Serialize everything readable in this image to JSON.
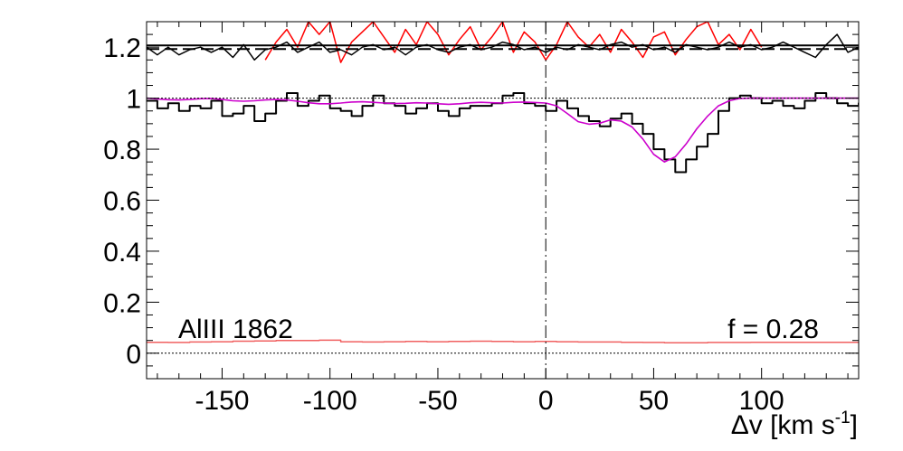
{
  "chart_data": {
    "type": "line",
    "title": "",
    "xlabel": {
      "main": "Δv [km s",
      "sup": "-1",
      "close": "]"
    },
    "ylabel": "",
    "xlim": [
      -185,
      145
    ],
    "ylim": [
      -0.1,
      1.3
    ],
    "x_ticks": [
      -150,
      -100,
      -50,
      0,
      50,
      100
    ],
    "x_tick_labels": [
      "-150",
      "-100",
      "-50",
      "0",
      "50",
      "100"
    ],
    "y_ticks": [
      0,
      0.2,
      0.4,
      0.6,
      0.8,
      1,
      1.2
    ],
    "y_tick_labels": [
      "0",
      "0.2",
      "0.4",
      "0.6",
      "0.8",
      "1",
      "1.2"
    ],
    "grid": false,
    "annotations": {
      "line_label": "AlIII 1862",
      "f_label": "f = 0.28"
    },
    "reference_lines": {
      "continuum": 1.0,
      "zero": 0.0,
      "residual_zero": 1.2,
      "velocity_zero": 0
    },
    "colors": {
      "flux": "#000000",
      "model": "#cc00cc",
      "error": "#f06060",
      "residual": "#000000",
      "residual_scaled": "#ff0000"
    },
    "series": [
      {
        "key": "flux",
        "style": "step",
        "x": [
          -185,
          -180,
          -175,
          -170,
          -165,
          -160,
          -155,
          -150,
          -145,
          -140,
          -135,
          -130,
          -125,
          -120,
          -115,
          -110,
          -105,
          -100,
          -95,
          -90,
          -85,
          -80,
          -75,
          -70,
          -65,
          -60,
          -55,
          -50,
          -45,
          -40,
          -35,
          -30,
          -25,
          -20,
          -15,
          -10,
          -5,
          0,
          5,
          10,
          15,
          20,
          25,
          30,
          35,
          40,
          45,
          50,
          55,
          60,
          65,
          70,
          75,
          80,
          85,
          90,
          95,
          100,
          105,
          110,
          115,
          120,
          125,
          130,
          135,
          140,
          145
        ],
        "y": [
          0.99,
          0.96,
          0.98,
          0.95,
          0.97,
          0.96,
          0.99,
          0.93,
          0.94,
          0.97,
          0.91,
          0.94,
          0.99,
          1.02,
          0.97,
          0.99,
          1.01,
          0.96,
          0.95,
          0.93,
          0.97,
          1.01,
          0.98,
          0.97,
          0.94,
          0.96,
          0.98,
          0.95,
          0.93,
          0.96,
          0.97,
          0.97,
          0.98,
          1.01,
          1.02,
          0.98,
          0.97,
          0.95,
          0.99,
          0.96,
          0.93,
          0.91,
          0.89,
          0.92,
          0.94,
          0.9,
          0.86,
          0.8,
          0.76,
          0.71,
          0.76,
          0.81,
          0.86,
          0.95,
          1.0,
          1.01,
          1.0,
          0.98,
          0.99,
          0.97,
          0.96,
          0.99,
          1.02,
          1.0,
          0.98,
          0.97,
          0.98
        ]
      },
      {
        "key": "model",
        "style": "line",
        "x": [
          -185,
          -180,
          -175,
          -170,
          -165,
          -160,
          -155,
          -150,
          -145,
          -140,
          -135,
          -130,
          -125,
          -120,
          -115,
          -110,
          -105,
          -100,
          -95,
          -90,
          -85,
          -80,
          -75,
          -70,
          -65,
          -60,
          -55,
          -50,
          -45,
          -40,
          -35,
          -30,
          -25,
          -20,
          -15,
          -10,
          -5,
          0,
          5,
          10,
          15,
          20,
          25,
          30,
          35,
          40,
          45,
          50,
          55,
          60,
          65,
          70,
          75,
          80,
          85,
          90,
          95,
          100,
          105,
          110,
          115,
          120,
          125,
          130,
          135,
          140,
          145
        ],
        "y": [
          1.0,
          0.997,
          0.994,
          0.993,
          0.995,
          0.998,
          0.999,
          0.995,
          0.99,
          0.988,
          0.99,
          0.993,
          0.995,
          0.993,
          0.988,
          0.982,
          0.978,
          0.978,
          0.981,
          0.985,
          0.986,
          0.984,
          0.981,
          0.979,
          0.98,
          0.982,
          0.981,
          0.978,
          0.976,
          0.978,
          0.982,
          0.984,
          0.982,
          0.981,
          0.984,
          0.985,
          0.983,
          0.981,
          0.97,
          0.94,
          0.908,
          0.898,
          0.902,
          0.915,
          0.91,
          0.887,
          0.84,
          0.78,
          0.75,
          0.77,
          0.82,
          0.88,
          0.93,
          0.97,
          0.99,
          0.999,
          1.0,
          1.0,
          1.0,
          1.0,
          1.0,
          1.0,
          1.0,
          1.0,
          1.0,
          1.0,
          1.0
        ]
      },
      {
        "key": "error",
        "style": "step",
        "x": [
          -185,
          -175,
          -165,
          -155,
          -145,
          -135,
          -125,
          -115,
          -105,
          -95,
          -85,
          -75,
          -65,
          -55,
          -45,
          -35,
          -25,
          -15,
          -5,
          5,
          15,
          25,
          35,
          45,
          55,
          65,
          75,
          85,
          95,
          105,
          115,
          125,
          135,
          145
        ],
        "y": [
          0.043,
          0.042,
          0.044,
          0.045,
          0.047,
          0.048,
          0.05,
          0.05,
          0.051,
          0.045,
          0.044,
          0.045,
          0.046,
          0.045,
          0.046,
          0.047,
          0.046,
          0.045,
          0.046,
          0.045,
          0.044,
          0.044,
          0.043,
          0.042,
          0.041,
          0.041,
          0.042,
          0.042,
          0.043,
          0.043,
          0.043,
          0.043,
          0.043,
          0.043
        ]
      },
      {
        "key": "residual",
        "style": "line",
        "x": [
          -185,
          -180,
          -175,
          -170,
          -165,
          -160,
          -155,
          -150,
          -145,
          -140,
          -135,
          -130,
          -125,
          -120,
          -115,
          -110,
          -105,
          -100,
          -95,
          -90,
          -85,
          -80,
          -75,
          -70,
          -65,
          -60,
          -55,
          -50,
          -45,
          -40,
          -35,
          -30,
          -25,
          -20,
          -15,
          -10,
          -5,
          0,
          5,
          10,
          15,
          20,
          25,
          30,
          35,
          40,
          45,
          50,
          55,
          60,
          65,
          70,
          75,
          80,
          85,
          90,
          95,
          100,
          105,
          110,
          115,
          120,
          125,
          130,
          135,
          140,
          145
        ],
        "y": [
          1.2,
          1.17,
          1.2,
          1.17,
          1.19,
          1.2,
          1.18,
          1.2,
          1.16,
          1.21,
          1.15,
          1.19,
          1.2,
          1.22,
          1.18,
          1.2,
          1.22,
          1.18,
          1.19,
          1.17,
          1.2,
          1.21,
          1.19,
          1.2,
          1.17,
          1.2,
          1.21,
          1.19,
          1.18,
          1.2,
          1.21,
          1.19,
          1.2,
          1.22,
          1.21,
          1.19,
          1.2,
          1.18,
          1.2,
          1.19,
          1.21,
          1.2,
          1.19,
          1.21,
          1.22,
          1.2,
          1.21,
          1.19,
          1.2,
          1.18,
          1.21,
          1.2,
          1.19,
          1.2,
          1.22,
          1.2,
          1.21,
          1.19,
          1.2,
          1.22,
          1.2,
          1.18,
          1.16,
          1.21,
          1.25,
          1.18,
          1.2
        ]
      },
      {
        "key": "residual_scaled",
        "style": "line",
        "x": [
          -130,
          -125,
          -120,
          -115,
          -110,
          -105,
          -100,
          -95,
          -90,
          -85,
          -80,
          -75,
          -70,
          -65,
          -60,
          -55,
          -50,
          -45,
          -40,
          -35,
          -30,
          -25,
          -20,
          -15,
          -10,
          -5,
          0,
          5,
          10,
          15,
          20,
          25,
          30,
          35,
          40,
          45,
          50,
          55,
          60,
          65,
          70,
          75,
          80,
          85,
          90,
          95,
          100
        ],
        "y": [
          1.15,
          1.22,
          1.27,
          1.2,
          1.3,
          1.25,
          1.3,
          1.14,
          1.22,
          1.26,
          1.3,
          1.24,
          1.18,
          1.27,
          1.21,
          1.3,
          1.25,
          1.17,
          1.23,
          1.28,
          1.19,
          1.24,
          1.3,
          1.18,
          1.26,
          1.22,
          1.15,
          1.21,
          1.3,
          1.24,
          1.2,
          1.25,
          1.18,
          1.27,
          1.22,
          1.16,
          1.24,
          1.26,
          1.17,
          1.23,
          1.28,
          1.3,
          1.21,
          1.25,
          1.19,
          1.27,
          1.2
        ]
      }
    ]
  }
}
